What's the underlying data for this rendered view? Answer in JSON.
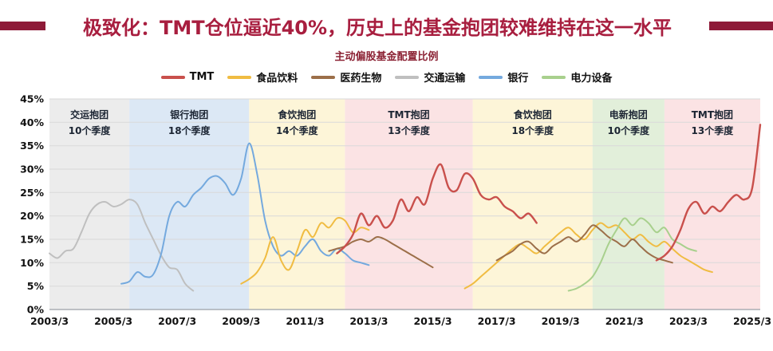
{
  "header": {
    "title": "极致化：TMT仓位逼近40%，历史上的基金抱团较难维持在这一水平",
    "accent_color": "#8e1a38"
  },
  "chart_data": {
    "type": "line",
    "title": "主动偏股基金配置比例",
    "ylim": [
      0,
      45
    ],
    "ytick_step": 5,
    "ytick_suffix": "%",
    "xlim": [
      2003.25,
      2025.5
    ],
    "grid": true,
    "legend_position": "top",
    "xticks": [
      {
        "pos": 2003.25,
        "label": "2003/3"
      },
      {
        "pos": 2005.25,
        "label": "2005/3"
      },
      {
        "pos": 2007.25,
        "label": "2007/3"
      },
      {
        "pos": 2009.25,
        "label": "2009/3"
      },
      {
        "pos": 2011.25,
        "label": "2011/3"
      },
      {
        "pos": 2013.25,
        "label": "2013/3"
      },
      {
        "pos": 2015.25,
        "label": "2015/3"
      },
      {
        "pos": 2017.25,
        "label": "2017/3"
      },
      {
        "pos": 2019.25,
        "label": "2019/3"
      },
      {
        "pos": 2021.25,
        "label": "2021/3"
      },
      {
        "pos": 2023.25,
        "label": "2023/3"
      },
      {
        "pos": 2025.25,
        "label": "2025/3"
      }
    ],
    "bands": [
      {
        "id": "transport-cluster",
        "name": "交运抱团",
        "quarters": "10个季度",
        "start": 2003.25,
        "end": 2005.75,
        "color": "#ececec"
      },
      {
        "id": "bank-cluster",
        "name": "银行抱团",
        "quarters": "18个季度",
        "start": 2005.75,
        "end": 2009.5,
        "color": "#dce8f5"
      },
      {
        "id": "food-cluster-1",
        "name": "食饮抱团",
        "quarters": "14个季度",
        "start": 2009.5,
        "end": 2012.5,
        "color": "#fdf5d8"
      },
      {
        "id": "tmt-cluster-1",
        "name": "TMT抱团",
        "quarters": "13个季度",
        "start": 2012.5,
        "end": 2016.5,
        "color": "#fbe3e4"
      },
      {
        "id": "food-cluster-2",
        "name": "食饮抱团",
        "quarters": "18个季度",
        "start": 2016.5,
        "end": 2020.25,
        "color": "#fdf5d8"
      },
      {
        "id": "power-cluster",
        "name": "电新抱团",
        "quarters": "10个季度",
        "start": 2020.25,
        "end": 2022.5,
        "color": "#e2efda"
      },
      {
        "id": "tmt-cluster-2",
        "name": "TMT抱团",
        "quarters": "13个季度",
        "start": 2022.5,
        "end": 2025.5,
        "color": "#fbe3e4"
      }
    ],
    "legend": [
      "TMT",
      "食品饮料",
      "医药生物",
      "交通运输",
      "银行",
      "电力设备"
    ],
    "series": [
      {
        "id": "transport",
        "name": "交通运输",
        "color": "#bfbfbf",
        "width": 2,
        "segments": [
          [
            [
              2003.25,
              12
            ],
            [
              2003.5,
              11
            ],
            [
              2003.75,
              12.5
            ],
            [
              2004,
              13
            ],
            [
              2004.25,
              16.5
            ],
            [
              2004.5,
              20.5
            ],
            [
              2004.75,
              22.5
            ],
            [
              2005,
              23
            ],
            [
              2005.25,
              22
            ],
            [
              2005.5,
              22.5
            ],
            [
              2005.75,
              23.5
            ],
            [
              2006,
              22.5
            ],
            [
              2006.25,
              18.5
            ],
            [
              2006.5,
              15
            ],
            [
              2006.75,
              11.5
            ],
            [
              2007,
              9
            ],
            [
              2007.25,
              8.5
            ],
            [
              2007.5,
              5.5
            ],
            [
              2007.75,
              4
            ]
          ]
        ]
      },
      {
        "id": "bank",
        "name": "银行",
        "color": "#74a9de",
        "width": 2,
        "segments": [
          [
            [
              2005.5,
              5.5
            ],
            [
              2005.75,
              6
            ],
            [
              2006,
              8
            ],
            [
              2006.25,
              7
            ],
            [
              2006.5,
              7.5
            ],
            [
              2006.75,
              12
            ],
            [
              2007,
              20
            ],
            [
              2007.25,
              23
            ],
            [
              2007.5,
              22
            ],
            [
              2007.75,
              24.5
            ],
            [
              2008,
              26
            ],
            [
              2008.25,
              28
            ],
            [
              2008.5,
              28.5
            ],
            [
              2008.75,
              27
            ],
            [
              2009,
              24.5
            ],
            [
              2009.25,
              28
            ],
            [
              2009.5,
              35.5
            ],
            [
              2009.75,
              29
            ],
            [
              2010,
              19
            ],
            [
              2010.25,
              13.5
            ],
            [
              2010.5,
              11.5
            ],
            [
              2010.75,
              12.5
            ],
            [
              2011,
              11.5
            ],
            [
              2011.25,
              13.5
            ],
            [
              2011.5,
              15
            ],
            [
              2011.75,
              12.5
            ],
            [
              2012,
              11.5
            ],
            [
              2012.25,
              13
            ],
            [
              2012.5,
              12
            ],
            [
              2012.75,
              10.5
            ],
            [
              2013,
              10
            ],
            [
              2013.25,
              9.5
            ]
          ]
        ]
      },
      {
        "id": "food-beverage",
        "name": "食品饮料",
        "color": "#f0bc42",
        "width": 2,
        "segments": [
          [
            [
              2009.25,
              5.5
            ],
            [
              2009.5,
              6.5
            ],
            [
              2009.75,
              8
            ],
            [
              2010,
              11
            ],
            [
              2010.25,
              15.5
            ],
            [
              2010.5,
              10.5
            ],
            [
              2010.75,
              8.5
            ],
            [
              2011,
              12.5
            ],
            [
              2011.25,
              17
            ],
            [
              2011.5,
              15.5
            ],
            [
              2011.75,
              18.5
            ],
            [
              2012,
              17.5
            ],
            [
              2012.25,
              19.5
            ],
            [
              2012.5,
              19
            ],
            [
              2012.75,
              16.5
            ],
            [
              2013,
              17.5
            ],
            [
              2013.25,
              17
            ]
          ],
          [
            [
              2016.25,
              4.5
            ],
            [
              2016.5,
              5.5
            ],
            [
              2016.75,
              7
            ],
            [
              2017,
              8.5
            ],
            [
              2017.25,
              10
            ],
            [
              2017.5,
              11.5
            ],
            [
              2017.75,
              13
            ],
            [
              2018,
              14
            ],
            [
              2018.25,
              13
            ],
            [
              2018.5,
              12
            ],
            [
              2018.75,
              13.5
            ],
            [
              2019,
              15
            ],
            [
              2019.25,
              16.5
            ],
            [
              2019.5,
              17.5
            ],
            [
              2019.75,
              16
            ],
            [
              2020,
              15
            ],
            [
              2020.25,
              17
            ],
            [
              2020.5,
              18.5
            ],
            [
              2020.75,
              17.5
            ],
            [
              2021,
              18
            ],
            [
              2021.25,
              16.5
            ],
            [
              2021.5,
              15
            ],
            [
              2021.75,
              16
            ],
            [
              2022,
              14.5
            ],
            [
              2022.25,
              13.5
            ],
            [
              2022.5,
              14.5
            ],
            [
              2022.75,
              13
            ],
            [
              2023,
              11.5
            ],
            [
              2023.25,
              10.5
            ],
            [
              2023.5,
              9.5
            ],
            [
              2023.75,
              8.5
            ],
            [
              2024,
              8
            ]
          ]
        ]
      },
      {
        "id": "pharma-bio",
        "name": "医药生物",
        "color": "#9c6f49",
        "width": 2,
        "segments": [
          [
            [
              2012,
              12.5
            ],
            [
              2012.25,
              13
            ],
            [
              2012.5,
              13.5
            ],
            [
              2012.75,
              14.5
            ],
            [
              2013,
              15
            ],
            [
              2013.25,
              14.5
            ],
            [
              2013.5,
              15.5
            ],
            [
              2013.75,
              15
            ],
            [
              2014,
              14
            ],
            [
              2014.25,
              13
            ],
            [
              2014.5,
              12
            ],
            [
              2014.75,
              11
            ],
            [
              2015,
              10
            ],
            [
              2015.25,
              9
            ]
          ],
          [
            [
              2017.25,
              10.5
            ],
            [
              2017.5,
              11.5
            ],
            [
              2017.75,
              12.5
            ],
            [
              2018,
              14
            ],
            [
              2018.25,
              14.5
            ],
            [
              2018.5,
              13
            ],
            [
              2018.75,
              12
            ],
            [
              2019,
              13.5
            ],
            [
              2019.25,
              14.5
            ],
            [
              2019.5,
              15.5
            ],
            [
              2019.75,
              14.5
            ],
            [
              2020,
              16
            ],
            [
              2020.25,
              18
            ],
            [
              2020.5,
              17
            ],
            [
              2020.75,
              15.5
            ],
            [
              2021,
              14.5
            ],
            [
              2021.25,
              13.5
            ],
            [
              2021.5,
              15
            ],
            [
              2021.75,
              13.5
            ],
            [
              2022,
              12
            ],
            [
              2022.25,
              11
            ],
            [
              2022.5,
              10.5
            ],
            [
              2022.75,
              10
            ]
          ]
        ]
      },
      {
        "id": "power-equipment",
        "name": "电力设备",
        "color": "#a8d08d",
        "width": 2,
        "segments": [
          [
            [
              2019.5,
              4
            ],
            [
              2019.75,
              4.5
            ],
            [
              2020,
              5.5
            ],
            [
              2020.25,
              7
            ],
            [
              2020.5,
              10
            ],
            [
              2020.75,
              14
            ],
            [
              2021,
              17
            ],
            [
              2021.25,
              19.5
            ],
            [
              2021.5,
              18
            ],
            [
              2021.75,
              19.5
            ],
            [
              2022,
              18.5
            ],
            [
              2022.25,
              16.5
            ],
            [
              2022.5,
              17.5
            ],
            [
              2022.75,
              15
            ],
            [
              2023,
              14
            ],
            [
              2023.25,
              13
            ],
            [
              2023.5,
              12.5
            ]
          ]
        ]
      },
      {
        "id": "tmt",
        "name": "TMT",
        "color": "#c9504c",
        "width": 2.4,
        "segments": [
          [
            [
              2012.25,
              12
            ],
            [
              2012.5,
              13.5
            ],
            [
              2012.75,
              16
            ],
            [
              2013,
              20.5
            ],
            [
              2013.25,
              18
            ],
            [
              2013.5,
              20
            ],
            [
              2013.75,
              17.5
            ],
            [
              2014,
              19
            ],
            [
              2014.25,
              23.5
            ],
            [
              2014.5,
              21
            ],
            [
              2014.75,
              24
            ],
            [
              2015,
              22.5
            ],
            [
              2015.25,
              28
            ],
            [
              2015.5,
              31
            ],
            [
              2015.75,
              26
            ],
            [
              2016,
              25.5
            ],
            [
              2016.25,
              29
            ],
            [
              2016.5,
              28
            ],
            [
              2016.75,
              24.5
            ],
            [
              2017,
              23.5
            ],
            [
              2017.25,
              24
            ],
            [
              2017.5,
              22
            ],
            [
              2017.75,
              21
            ],
            [
              2018,
              19.5
            ],
            [
              2018.25,
              20.5
            ],
            [
              2018.5,
              18.5
            ]
          ],
          [
            [
              2022.25,
              10.5
            ],
            [
              2022.5,
              11.5
            ],
            [
              2022.75,
              13.5
            ],
            [
              2023,
              17
            ],
            [
              2023.25,
              21.5
            ],
            [
              2023.5,
              23
            ],
            [
              2023.75,
              20.5
            ],
            [
              2024,
              22
            ],
            [
              2024.25,
              21
            ],
            [
              2024.5,
              23
            ],
            [
              2024.75,
              24.5
            ],
            [
              2025,
              23.5
            ],
            [
              2025.25,
              26
            ],
            [
              2025.5,
              39.5
            ]
          ]
        ]
      }
    ]
  }
}
